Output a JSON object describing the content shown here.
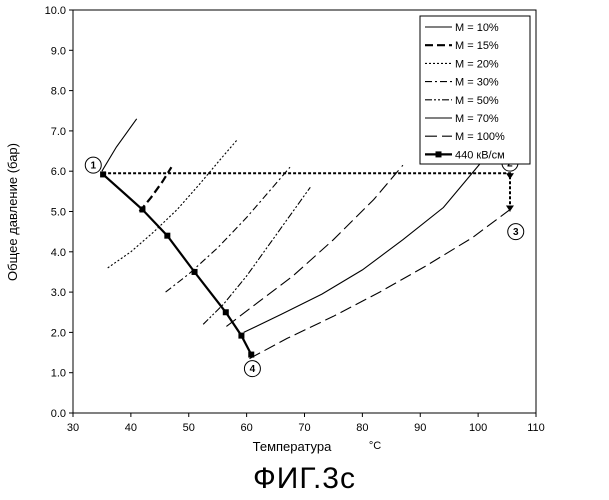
{
  "figure_caption": "ФИГ.3с",
  "chart_data": {
    "type": "line",
    "xlabel": "Температура",
    "xunit": "°C",
    "ylabel": "Общее давление (бар)",
    "xlim": [
      30,
      110
    ],
    "ylim": [
      0,
      10
    ],
    "xticks": [
      "30",
      "40",
      "50",
      "60",
      "70",
      "80",
      "90",
      "100",
      "110"
    ],
    "yticks": [
      "0.0",
      "1.0",
      "2.0",
      "3.0",
      "4.0",
      "5.0",
      "6.0",
      "7.0",
      "8.0",
      "9.0",
      "10.0"
    ],
    "grid": false,
    "legend_position": "top-right",
    "series": [
      {
        "name": "M = 10%",
        "style": "solid",
        "x": [
          35.0,
          37.5,
          41.0
        ],
        "y": [
          6.0,
          6.6,
          7.3
        ]
      },
      {
        "name": "M = 15%",
        "style": "dash",
        "x": [
          41.5,
          43.5,
          45.5,
          47.0
        ],
        "y": [
          5.0,
          5.35,
          5.75,
          6.1
        ]
      },
      {
        "name": "M = 20%",
        "style": "dot",
        "x": [
          36.0,
          40.0,
          44.0,
          48.0,
          52.0,
          55.5,
          58.5
        ],
        "y": [
          3.6,
          4.0,
          4.5,
          5.05,
          5.7,
          6.3,
          6.8
        ]
      },
      {
        "name": "M = 30%",
        "style": "dashdot",
        "x": [
          46.0,
          50.0,
          55.0,
          60.0,
          64.5,
          67.5
        ],
        "y": [
          3.0,
          3.45,
          4.1,
          4.85,
          5.6,
          6.1
        ]
      },
      {
        "name": "M = 50%",
        "style": "dashdotdot",
        "x": [
          52.5,
          56.0,
          60.0,
          64.0,
          68.0,
          71.0
        ],
        "y": [
          2.2,
          2.7,
          3.4,
          4.2,
          5.0,
          5.6
        ]
      },
      {
        "name": "M = 70%",
        "style": "longdash",
        "x": [
          56.5,
          62.0,
          68.0,
          75.0,
          82.0,
          87.0
        ],
        "y": [
          2.15,
          2.75,
          3.4,
          4.3,
          5.3,
          6.15
        ]
      },
      {
        "name": "M = 100%",
        "style": "solid",
        "x": [
          59.5,
          66.0,
          73.0,
          80.0,
          87.0,
          94.0,
          101.0
        ],
        "y": [
          2.0,
          2.45,
          2.95,
          3.55,
          4.3,
          5.1,
          6.3
        ]
      },
      {
        "name": "M = 100%",
        "style": "longdash",
        "x": [
          60.5,
          67.0,
          75.0,
          83.0,
          91.0,
          99.0,
          106.0
        ],
        "y": [
          1.35,
          1.85,
          2.4,
          3.0,
          3.65,
          4.35,
          5.1
        ]
      },
      {
        "name": "440 кВ/см",
        "style": "solid-marker",
        "x": [
          35.2,
          42.0,
          46.3,
          51.0,
          56.4,
          59.1,
          60.8
        ],
        "y": [
          5.92,
          5.05,
          4.4,
          3.5,
          2.5,
          1.92,
          1.45
        ]
      }
    ],
    "connector": {
      "style": "dot-bold",
      "x": [
        35.2,
        105.5,
        105.5
      ],
      "y": [
        5.95,
        5.95,
        5.0
      ]
    },
    "point_labels": [
      {
        "text": "1",
        "x": 33.5,
        "y": 6.15
      },
      {
        "text": "2",
        "x": 105.5,
        "y": 6.2
      },
      {
        "text": "3",
        "x": 106.5,
        "y": 4.5
      },
      {
        "text": "4",
        "x": 61.0,
        "y": 1.1
      }
    ],
    "legend": [
      {
        "label": "M = 10%",
        "style": "solid"
      },
      {
        "label": "M = 15%",
        "style": "dash"
      },
      {
        "label": "M = 20%",
        "style": "dot"
      },
      {
        "label": "M = 30%",
        "style": "dashdot"
      },
      {
        "label": "M = 50%",
        "style": "dashdotdot"
      },
      {
        "label": "M = 70%",
        "style": "solid"
      },
      {
        "label": "M = 100%",
        "style": "longdash"
      },
      {
        "label": "440 кВ/см",
        "style": "solid-marker"
      }
    ]
  }
}
